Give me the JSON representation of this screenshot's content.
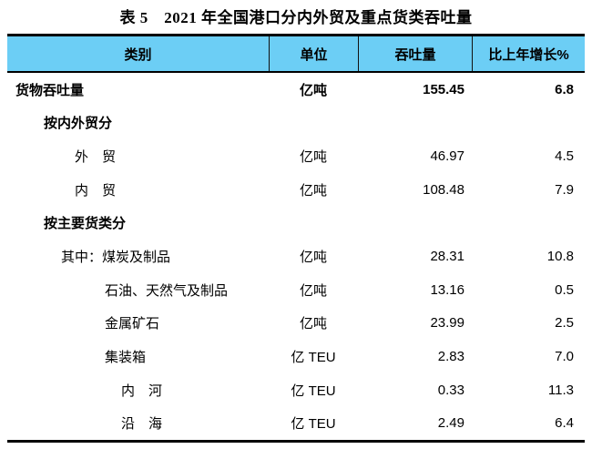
{
  "title": "表 5　2021 年全国港口分内外贸及重点货类吞吐量",
  "colors": {
    "header_bg": "#6CCEF5",
    "rule": "#000000"
  },
  "table": {
    "headers": [
      "类别",
      "单位",
      "吞吐量",
      "比上年增长%"
    ],
    "rows": [
      {
        "label": "货物吞吐量",
        "unit": "亿吨",
        "value": "155.45",
        "growth": "6.8"
      },
      {
        "label": "按内外贸分",
        "unit": "",
        "value": "",
        "growth": ""
      },
      {
        "label": "外　贸",
        "unit": "亿吨",
        "value": "46.97",
        "growth": "4.5"
      },
      {
        "label": "内　贸",
        "unit": "亿吨",
        "value": "108.48",
        "growth": "7.9"
      },
      {
        "label": "按主要货类分",
        "unit": "",
        "value": "",
        "growth": ""
      },
      {
        "label": "其中：煤炭及制品",
        "unit": "亿吨",
        "value": "28.31",
        "growth": "10.8"
      },
      {
        "label": "石油、天然气及制品",
        "unit": "亿吨",
        "value": "13.16",
        "growth": "0.5"
      },
      {
        "label": "金属矿石",
        "unit": "亿吨",
        "value": "23.99",
        "growth": "2.5"
      },
      {
        "label": "集装箱",
        "unit": "亿 TEU",
        "value": "2.83",
        "growth": "7.0"
      },
      {
        "label": "内　河",
        "unit": "亿 TEU",
        "value": "0.33",
        "growth": "11.3"
      },
      {
        "label": "沿　海",
        "unit": "亿 TEU",
        "value": "2.49",
        "growth": "6.4"
      }
    ]
  }
}
